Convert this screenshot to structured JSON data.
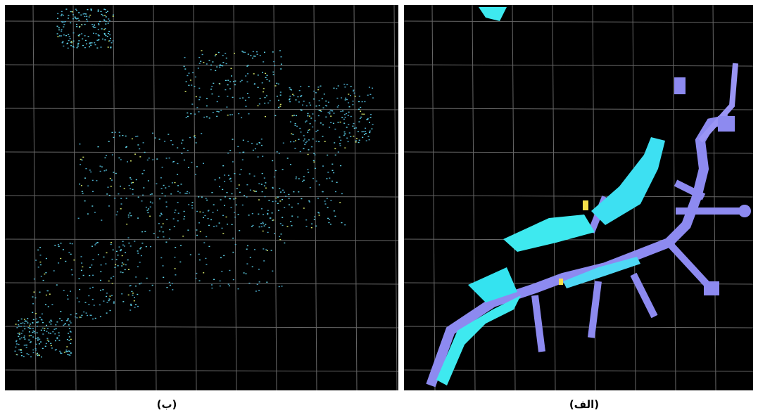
{
  "panels": [
    {
      "label": "(ب)"
    },
    {
      "label": "(الف)"
    }
  ]
}
